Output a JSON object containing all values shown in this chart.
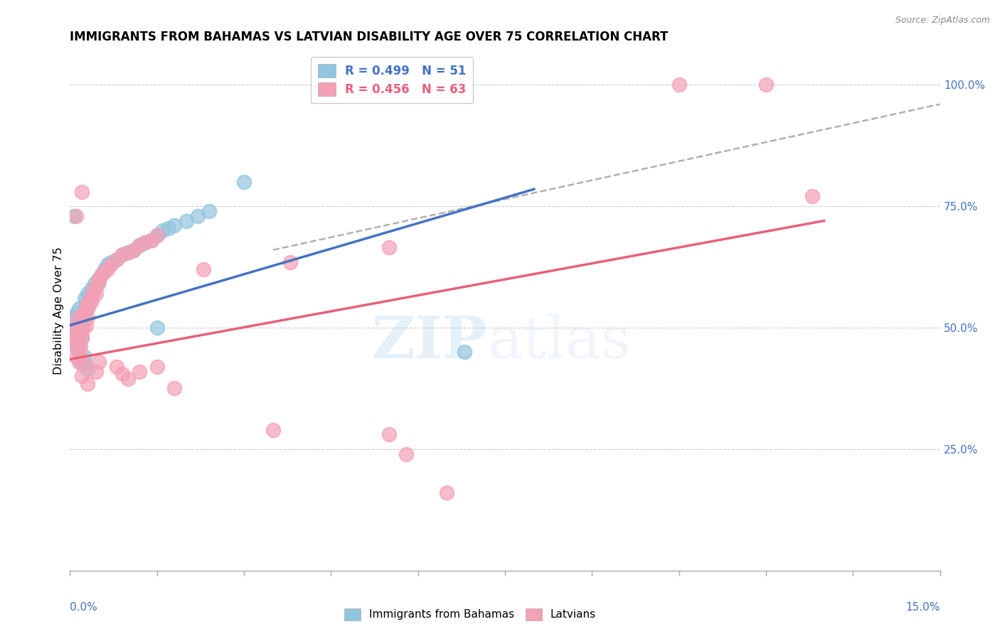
{
  "title": "IMMIGRANTS FROM BAHAMAS VS LATVIAN DISABILITY AGE OVER 75 CORRELATION CHART",
  "source": "Source: ZipAtlas.com",
  "ylabel": "Disability Age Over 75",
  "xlim": [
    0.0,
    15.0
  ],
  "ylim": [
    0.0,
    107.0
  ],
  "blue_color": "#92c5de",
  "pink_color": "#f4a0b5",
  "blue_line_color": "#4472c4",
  "pink_line_color": "#e8607a",
  "dashed_line_color": "#b0b0b0",
  "legend_blue_label": "R = 0.499   N = 51",
  "legend_pink_label": "R = 0.456   N = 63",
  "watermark_zip": "ZIP",
  "watermark_atlas": "atlas",
  "scatter_blue": [
    [
      0.05,
      52.0
    ],
    [
      0.08,
      48.5
    ],
    [
      0.1,
      50.0
    ],
    [
      0.1,
      46.0
    ],
    [
      0.12,
      53.0
    ],
    [
      0.13,
      51.5
    ],
    [
      0.15,
      47.0
    ],
    [
      0.15,
      54.0
    ],
    [
      0.18,
      49.5
    ],
    [
      0.18,
      52.5
    ],
    [
      0.2,
      51.0
    ],
    [
      0.2,
      48.0
    ],
    [
      0.22,
      50.5
    ],
    [
      0.25,
      53.5
    ],
    [
      0.25,
      56.0
    ],
    [
      0.28,
      55.0
    ],
    [
      0.3,
      57.0
    ],
    [
      0.3,
      54.0
    ],
    [
      0.32,
      55.5
    ],
    [
      0.35,
      56.5
    ],
    [
      0.38,
      58.0
    ],
    [
      0.4,
      57.5
    ],
    [
      0.42,
      59.0
    ],
    [
      0.45,
      58.5
    ],
    [
      0.48,
      60.0
    ],
    [
      0.5,
      59.5
    ],
    [
      0.55,
      61.0
    ],
    [
      0.6,
      62.0
    ],
    [
      0.65,
      63.0
    ],
    [
      0.7,
      63.5
    ],
    [
      0.8,
      64.0
    ],
    [
      0.9,
      65.0
    ],
    [
      1.0,
      65.5
    ],
    [
      1.1,
      66.0
    ],
    [
      1.2,
      67.0
    ],
    [
      1.3,
      67.5
    ],
    [
      1.4,
      68.0
    ],
    [
      1.5,
      69.0
    ],
    [
      1.6,
      70.0
    ],
    [
      1.7,
      70.5
    ],
    [
      1.8,
      71.0
    ],
    [
      2.0,
      72.0
    ],
    [
      2.2,
      73.0
    ],
    [
      2.4,
      74.0
    ],
    [
      0.07,
      73.0
    ],
    [
      3.0,
      80.0
    ],
    [
      6.8,
      45.0
    ],
    [
      0.2,
      42.5
    ],
    [
      0.25,
      44.0
    ],
    [
      0.3,
      41.5
    ],
    [
      1.5,
      50.0
    ]
  ],
  "scatter_pink": [
    [
      0.05,
      49.0
    ],
    [
      0.08,
      46.5
    ],
    [
      0.1,
      50.5
    ],
    [
      0.1,
      44.0
    ],
    [
      0.12,
      47.5
    ],
    [
      0.13,
      52.0
    ],
    [
      0.15,
      48.5
    ],
    [
      0.15,
      45.0
    ],
    [
      0.18,
      51.0
    ],
    [
      0.18,
      46.0
    ],
    [
      0.2,
      50.0
    ],
    [
      0.2,
      48.0
    ],
    [
      0.22,
      49.5
    ],
    [
      0.22,
      52.5
    ],
    [
      0.25,
      53.0
    ],
    [
      0.28,
      54.0
    ],
    [
      0.28,
      50.5
    ],
    [
      0.3,
      55.0
    ],
    [
      0.3,
      52.0
    ],
    [
      0.32,
      54.5
    ],
    [
      0.35,
      56.0
    ],
    [
      0.38,
      55.5
    ],
    [
      0.4,
      57.5
    ],
    [
      0.42,
      58.0
    ],
    [
      0.45,
      57.0
    ],
    [
      0.48,
      59.0
    ],
    [
      0.5,
      60.0
    ],
    [
      0.55,
      61.0
    ],
    [
      0.6,
      61.5
    ],
    [
      0.65,
      62.0
    ],
    [
      0.7,
      63.0
    ],
    [
      0.8,
      64.0
    ],
    [
      0.9,
      65.0
    ],
    [
      1.0,
      65.5
    ],
    [
      1.1,
      66.0
    ],
    [
      1.2,
      67.0
    ],
    [
      1.3,
      67.5
    ],
    [
      1.4,
      68.0
    ],
    [
      1.5,
      69.0
    ],
    [
      0.1,
      73.0
    ],
    [
      0.2,
      78.0
    ],
    [
      2.3,
      62.0
    ],
    [
      3.8,
      63.5
    ],
    [
      5.5,
      66.5
    ],
    [
      0.15,
      43.0
    ],
    [
      0.2,
      40.0
    ],
    [
      0.25,
      42.5
    ],
    [
      0.3,
      38.5
    ],
    [
      0.45,
      41.0
    ],
    [
      0.5,
      43.0
    ],
    [
      0.8,
      42.0
    ],
    [
      0.9,
      40.5
    ],
    [
      1.0,
      39.5
    ],
    [
      1.2,
      41.0
    ],
    [
      1.5,
      42.0
    ],
    [
      1.8,
      37.5
    ],
    [
      3.5,
      29.0
    ],
    [
      5.8,
      24.0
    ],
    [
      5.5,
      28.0
    ],
    [
      6.5,
      16.0
    ],
    [
      10.5,
      100.0
    ],
    [
      12.0,
      100.0
    ],
    [
      12.8,
      77.0
    ]
  ],
  "blue_line": [
    [
      0.0,
      50.5
    ],
    [
      8.0,
      78.5
    ]
  ],
  "pink_line": [
    [
      0.0,
      43.5
    ],
    [
      13.0,
      72.0
    ]
  ],
  "dashed_line": [
    [
      3.5,
      66.0
    ],
    [
      15.0,
      96.0
    ]
  ]
}
